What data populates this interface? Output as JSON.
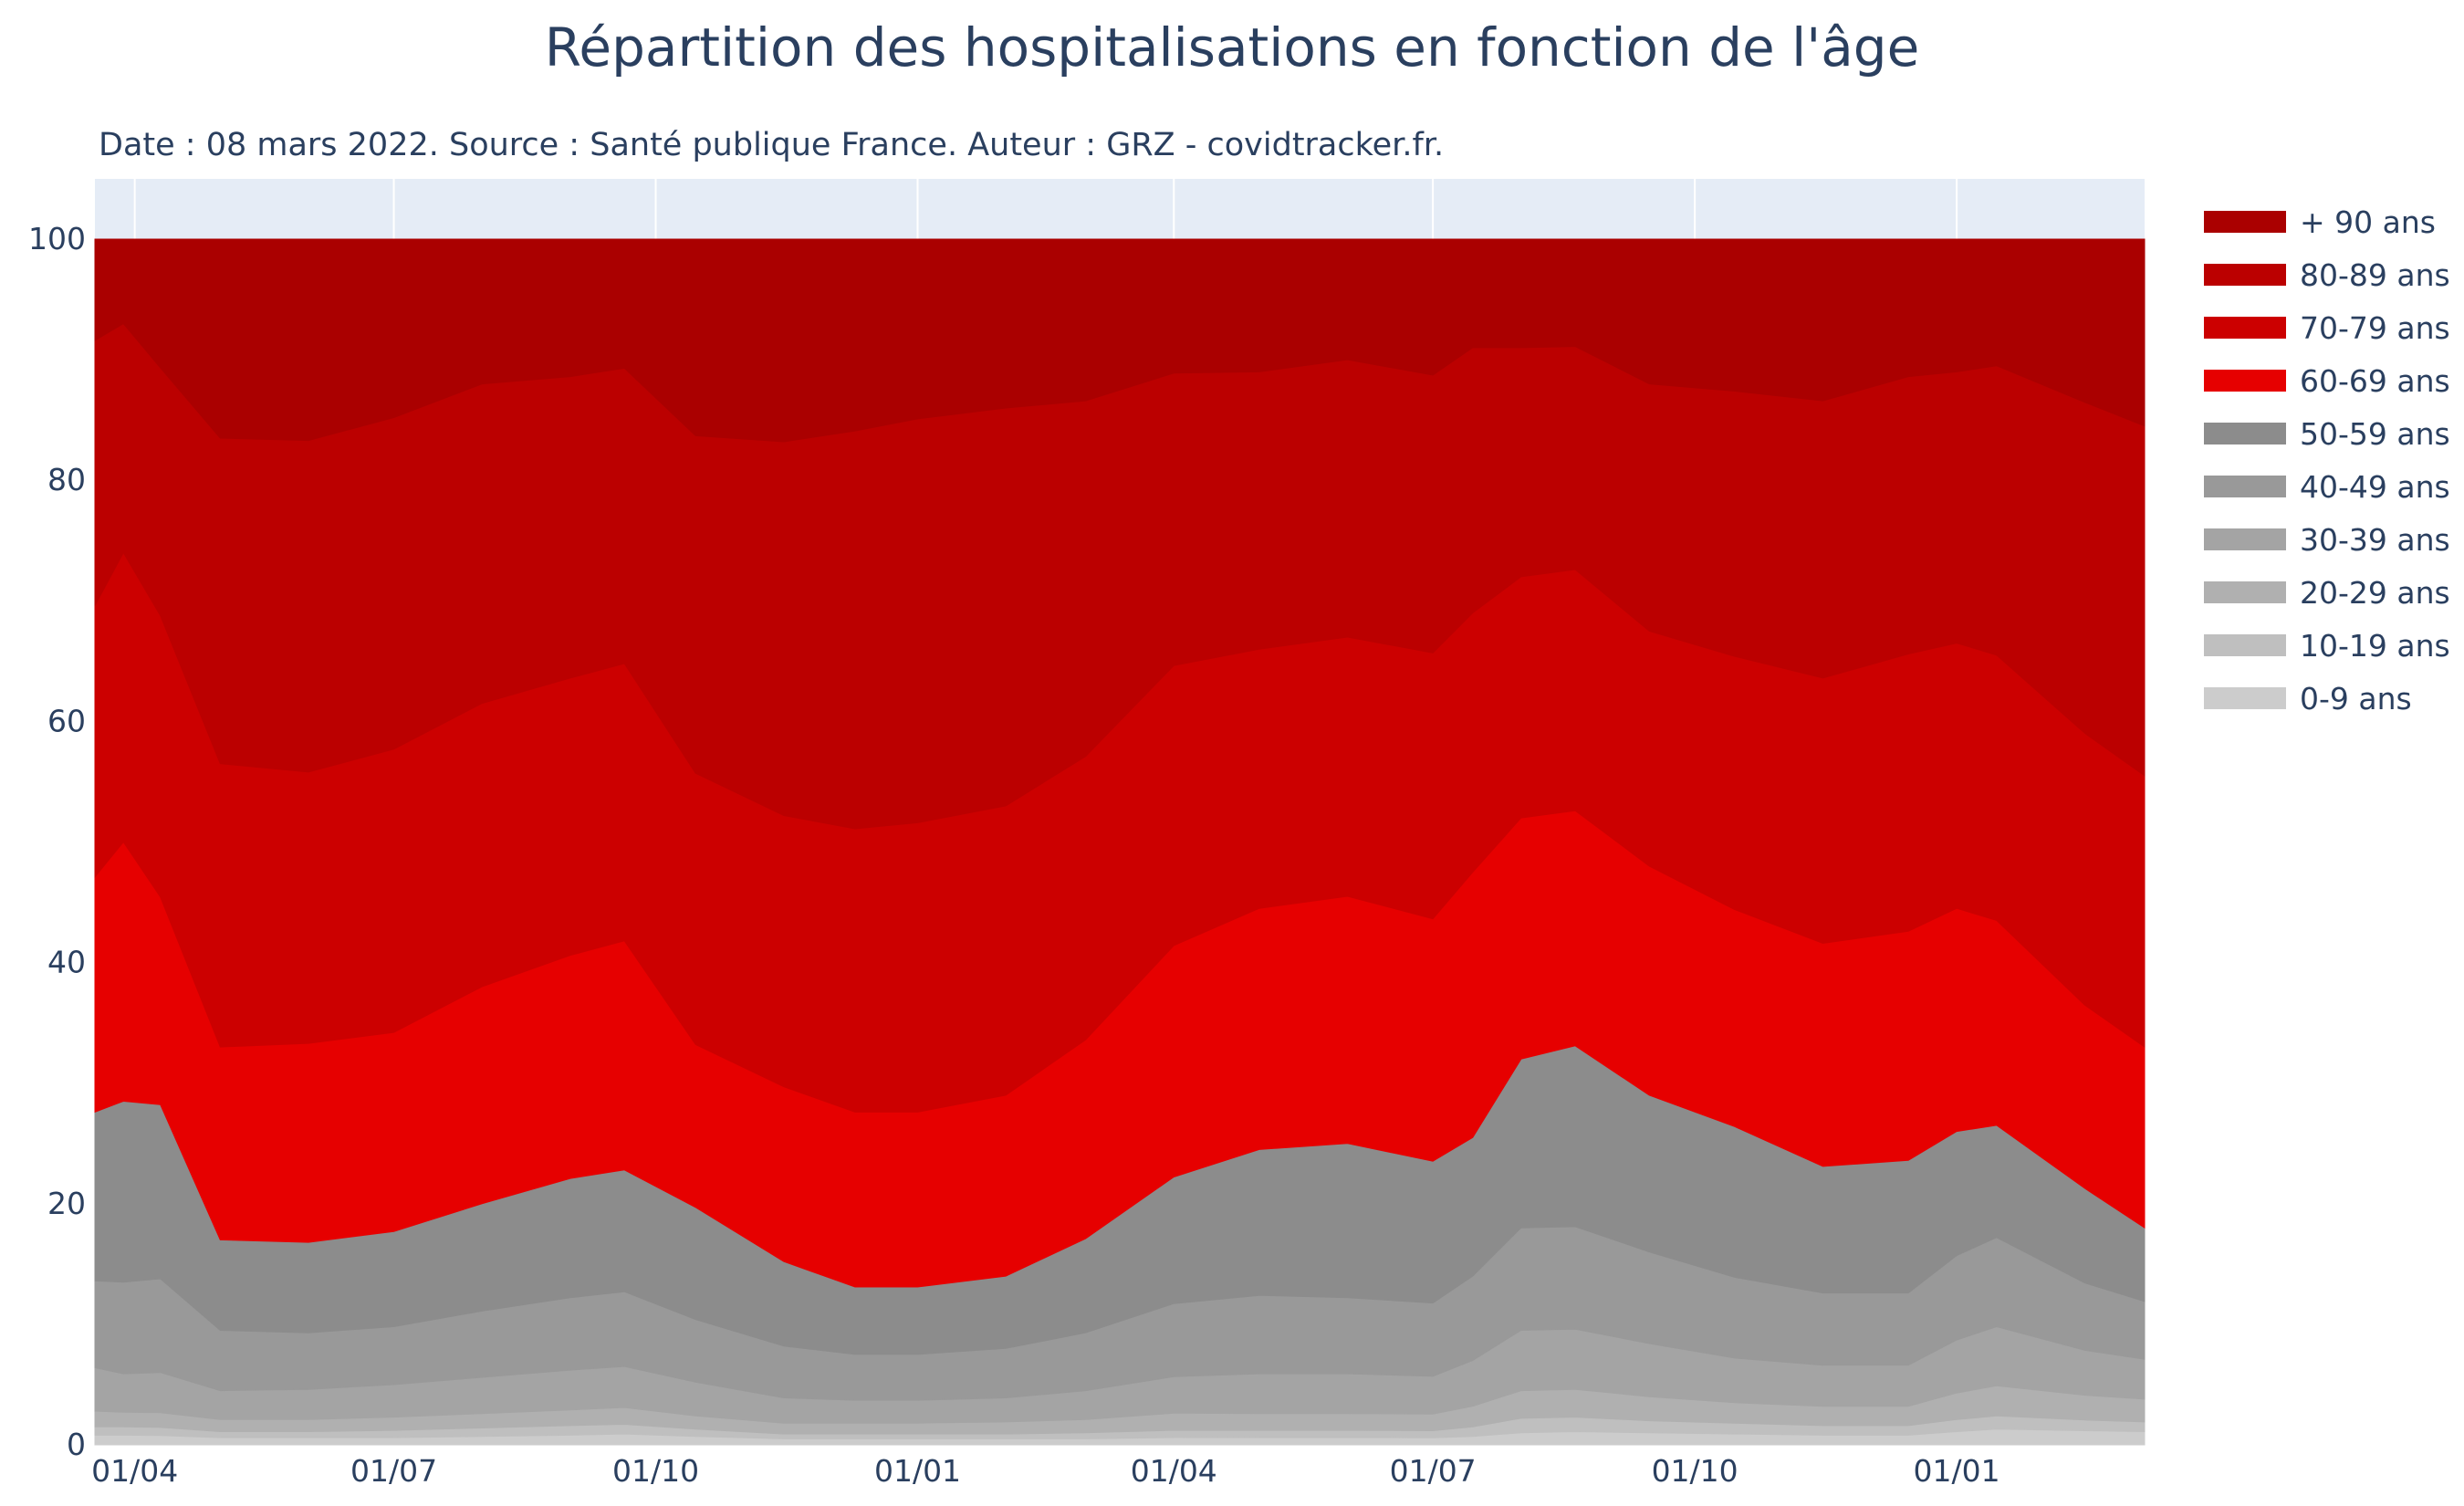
{
  "chart_data": {
    "type": "area",
    "stacking": "percent",
    "title": "Répartition des hospitalisations en fonction de l'âge",
    "subtitle": "Date : 08 mars 2022. Source : Santé publique France. Auteur : GRZ - covidtracker.fr.",
    "xlabel": "",
    "ylabel": "",
    "ylim": [
      0,
      105
    ],
    "y_ticks": [
      0,
      20,
      40,
      60,
      80,
      100
    ],
    "x_range": [
      "2020-03-18",
      "2022-03-08"
    ],
    "x_ticks": [
      {
        "date": "2020-04-01",
        "label": "01/04"
      },
      {
        "date": "2020-07-01",
        "label": "01/07"
      },
      {
        "date": "2020-10-01",
        "label": "01/10"
      },
      {
        "date": "2021-01-01",
        "label": "01/01"
      },
      {
        "date": "2021-04-01",
        "label": "01/04"
      },
      {
        "date": "2021-07-01",
        "label": "01/07"
      },
      {
        "date": "2021-10-01",
        "label": "01/10"
      },
      {
        "date": "2022-01-01",
        "label": "01/01"
      }
    ],
    "grid": true,
    "plot_bgcolor": "#e5ecf6",
    "legend_position": "right",
    "x": [
      "2020-03-18",
      "2020-03-28",
      "2020-04-10",
      "2020-05-01",
      "2020-06-01",
      "2020-07-01",
      "2020-08-01",
      "2020-09-01",
      "2020-09-20",
      "2020-10-15",
      "2020-11-15",
      "2020-12-10",
      "2021-01-01",
      "2021-02-01",
      "2021-03-01",
      "2021-04-01",
      "2021-05-01",
      "2021-06-01",
      "2021-07-01",
      "2021-07-15",
      "2021-08-01",
      "2021-08-20",
      "2021-09-15",
      "2021-10-15",
      "2021-11-15",
      "2021-12-15",
      "2022-01-01",
      "2022-01-15",
      "2022-02-15",
      "2022-03-08"
    ],
    "series": [
      {
        "name": "0-9 ans",
        "color": "#cccccc",
        "values": [
          0.8,
          0.8,
          0.7,
          0.6,
          0.6,
          0.6,
          0.7,
          0.8,
          0.9,
          0.7,
          0.5,
          0.5,
          0.5,
          0.5,
          0.5,
          0.6,
          0.6,
          0.6,
          0.6,
          0.7,
          1.0,
          1.1,
          1.0,
          0.9,
          0.8,
          0.8,
          1.1,
          1.3,
          1.2,
          1.1
        ]
      },
      {
        "name": "10-19 ans",
        "color": "#bfbfbf",
        "values": [
          0.7,
          0.7,
          0.6,
          0.5,
          0.5,
          0.6,
          0.7,
          0.8,
          0.8,
          0.6,
          0.4,
          0.4,
          0.4,
          0.4,
          0.5,
          0.6,
          0.6,
          0.6,
          0.6,
          0.8,
          1.2,
          1.2,
          1.0,
          0.9,
          0.8,
          0.8,
          1.0,
          1.1,
          0.9,
          0.8
        ]
      },
      {
        "name": "20-29 ans",
        "color": "#b0b0b0",
        "values": [
          1.3,
          1.2,
          1.1,
          1.0,
          1.0,
          1.1,
          1.2,
          1.3,
          1.4,
          1.1,
          0.9,
          0.9,
          0.9,
          1.0,
          1.1,
          1.4,
          1.4,
          1.4,
          1.4,
          1.7,
          2.3,
          2.3,
          2.0,
          1.7,
          1.6,
          1.6,
          2.2,
          2.5,
          2.1,
          1.9
        ]
      },
      {
        "name": "30-39 ans",
        "color": "#a4a4a4",
        "values": [
          3.6,
          3.2,
          3.0,
          2.4,
          2.5,
          2.7,
          3.0,
          3.3,
          3.4,
          2.8,
          2.1,
          1.9,
          1.9,
          2.0,
          2.4,
          3.0,
          3.3,
          3.3,
          3.2,
          3.8,
          5.0,
          5.0,
          4.4,
          3.7,
          3.4,
          3.4,
          4.4,
          4.9,
          3.8,
          3.3
        ]
      },
      {
        "name": "40-49 ans",
        "color": "#999999",
        "values": [
          7.2,
          7.6,
          7.0,
          5.0,
          4.7,
          4.8,
          5.5,
          6.0,
          6.2,
          5.2,
          4.3,
          3.8,
          3.8,
          4.1,
          4.8,
          6.0,
          6.5,
          6.3,
          6.2,
          7.0,
          8.5,
          8.5,
          7.6,
          6.7,
          6.0,
          6.0,
          7.0,
          7.4,
          5.7,
          4.8
        ]
      },
      {
        "name": "50-59 ans",
        "color": "#8c8c8c",
        "values": [
          14.0,
          15.0,
          13.0,
          7.5,
          7.5,
          7.9,
          8.9,
          9.9,
          10.1,
          9.3,
          7.0,
          5.6,
          5.6,
          6.0,
          7.8,
          10.4,
          12.1,
          12.8,
          12.0,
          11.5,
          14.0,
          15.0,
          13.0,
          12.5,
          10.5,
          11.0,
          10.3,
          9.3,
          8.0,
          6.1
        ]
      },
      {
        "name": "60-69 ans",
        "color": "#e60000",
        "values": [
          19.5,
          21.5,
          15.5,
          16.0,
          16.5,
          16.5,
          18.0,
          18.5,
          19.0,
          13.5,
          14.5,
          14.5,
          14.5,
          15.0,
          16.5,
          19.0,
          20.0,
          20.5,
          20.5,
          22.0,
          20.0,
          19.5,
          19.0,
          18.0,
          18.5,
          19.0,
          18.5,
          17.0,
          15.5,
          15.0
        ]
      },
      {
        "name": "70-79 ans",
        "color": "#cc0000",
        "values": [
          22.5,
          24.0,
          21.0,
          23.5,
          22.5,
          23.5,
          23.5,
          23.0,
          23.0,
          22.5,
          22.5,
          23.5,
          24.0,
          24.0,
          23.5,
          23.0,
          21.5,
          21.5,
          22.5,
          21.5,
          20.0,
          20.0,
          19.5,
          21.0,
          22.0,
          23.0,
          22.0,
          22.0,
          23.0,
          22.5
        ]
      },
      {
        "name": "80-89 ans",
        "color": "#bb0000",
        "values": [
          22.0,
          19.0,
          18.5,
          27.0,
          27.5,
          27.5,
          26.5,
          25.0,
          24.5,
          28.0,
          31.0,
          33.0,
          33.5,
          33.0,
          29.5,
          24.0,
          23.0,
          23.0,
          23.5,
          22.0,
          19.0,
          18.5,
          20.5,
          22.0,
          23.0,
          23.0,
          22.5,
          24.0,
          28.0,
          29.0
        ]
      },
      {
        "name": "+ 90 ans",
        "color": "#aa0000",
        "values": [
          8.4,
          7.0,
          9.6,
          16.5,
          16.7,
          14.8,
          12.0,
          11.4,
          10.7,
          16.3,
          16.8,
          15.9,
          14.9,
          14.0,
          13.4,
          11.0,
          11.0,
          10.0,
          11.5,
          9.0,
          9.0,
          8.9,
          12.0,
          12.6,
          13.4,
          11.4,
          11.0,
          10.5,
          13.8,
          15.5
        ]
      }
    ]
  }
}
